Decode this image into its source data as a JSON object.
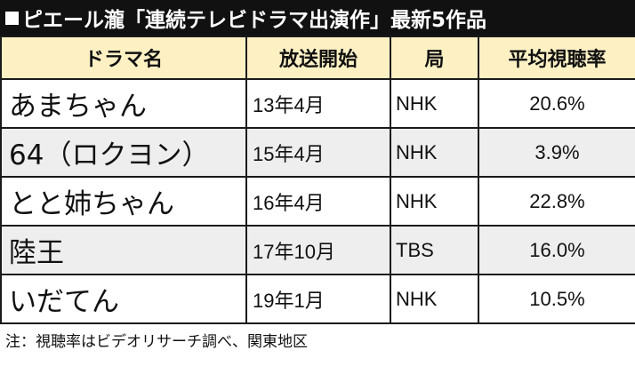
{
  "header": {
    "title": "ピエール瀧「連続テレビドラマ出演作」最新5作品"
  },
  "table": {
    "columns": [
      "ドラマ名",
      "放送開始",
      "局",
      "平均視聴率"
    ],
    "rows": [
      {
        "title": "あまちゃん",
        "start": "13年4月",
        "network": "NHK",
        "rating": "20.6%"
      },
      {
        "title": "64（ロクヨン）",
        "start": "15年4月",
        "network": "NHK",
        "rating": "3.9%"
      },
      {
        "title": "とと姉ちゃん",
        "start": "16年4月",
        "network": "NHK",
        "rating": "22.8%"
      },
      {
        "title": "陸王",
        "start": "17年10月",
        "network": "TBS",
        "rating": "16.0%"
      },
      {
        "title": "いだてん",
        "start": "19年1月",
        "network": "NHK",
        "rating": "10.5%"
      }
    ]
  },
  "footer": {
    "note": "注：視聴率はビデオリサーチ調べ、関東地区"
  },
  "colors": {
    "title_bar_bg": "#111111",
    "header_row_bg": "#fdf1c4",
    "alt_row_bg": "#eeeeee"
  },
  "icons": {
    "title_marker": "black-square-icon"
  }
}
